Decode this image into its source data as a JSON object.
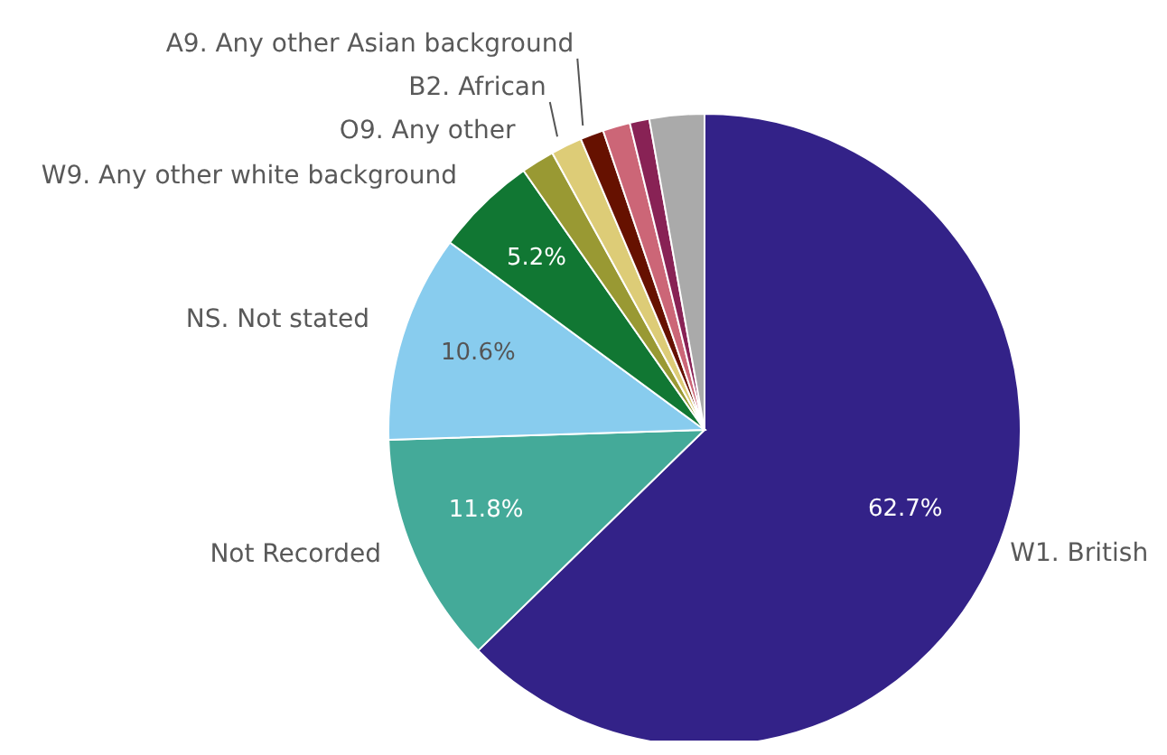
{
  "chart_data": {
    "type": "pie",
    "categories": [
      "W1. British",
      "Not Recorded",
      "NS. Not stated",
      "W9. Any other white background",
      "O9. Any other",
      "B2. African",
      "A9. Any other Asian background",
      null,
      null,
      null
    ],
    "values": [
      62.7,
      11.8,
      10.6,
      5.2,
      1.7,
      1.6,
      1.2,
      1.4,
      1.0,
      2.8
    ],
    "colors": [
      "#332288",
      "#44aa99",
      "#88ccee",
      "#117733",
      "#999933",
      "#ddcc77",
      "#661100",
      "#cc6677",
      "#882255",
      "#aaaaaa"
    ],
    "value_labels": [
      "62.7%",
      "11.8%",
      "10.6%",
      "5.2%",
      null,
      null,
      null,
      null,
      null,
      null
    ]
  }
}
